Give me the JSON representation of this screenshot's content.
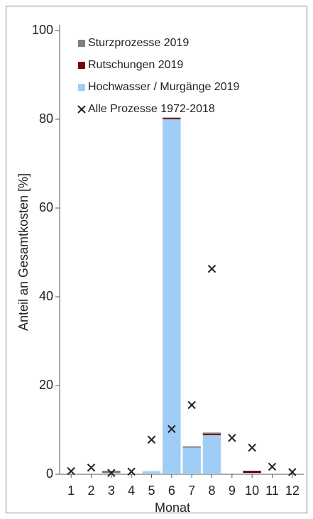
{
  "chart_data": {
    "type": "bar",
    "stacked": true,
    "x_label": "Monat",
    "y_label": "Anteil an Gesamtkosten [%]",
    "categories": [
      "1",
      "2",
      "3",
      "4",
      "5",
      "6",
      "7",
      "8",
      "9",
      "10",
      "11",
      "12"
    ],
    "series": [
      {
        "name": "Hochwasser / Murgänge 2019",
        "color": "#9fcdf5",
        "type": "bar",
        "values": [
          0,
          0,
          0.3,
          0,
          0.7,
          80,
          6,
          8.8,
          0,
          0.3,
          0,
          0
        ]
      },
      {
        "name": "Rutschungen 2019",
        "color": "#7f0000",
        "type": "bar",
        "values": [
          0,
          0,
          0,
          0,
          0,
          0.3,
          0,
          0.3,
          0,
          0.5,
          0,
          0
        ]
      },
      {
        "name": "Sturzprozesse 2019",
        "color": "#808080",
        "type": "bar",
        "values": [
          0,
          0,
          0.5,
          0,
          0,
          0.1,
          0.3,
          0.3,
          0,
          0,
          0,
          0
        ]
      },
      {
        "name": "Alle Prozesse 1972-2018",
        "color": "#222222",
        "type": "scatter",
        "values": [
          0.7,
          1.5,
          0.3,
          0.6,
          7.8,
          10.2,
          15.6,
          46.3,
          8.2,
          6.0,
          1.7,
          0.5
        ]
      }
    ],
    "ylim": [
      0,
      100
    ],
    "yticks": [
      0,
      20,
      40,
      60,
      80,
      100
    ]
  }
}
